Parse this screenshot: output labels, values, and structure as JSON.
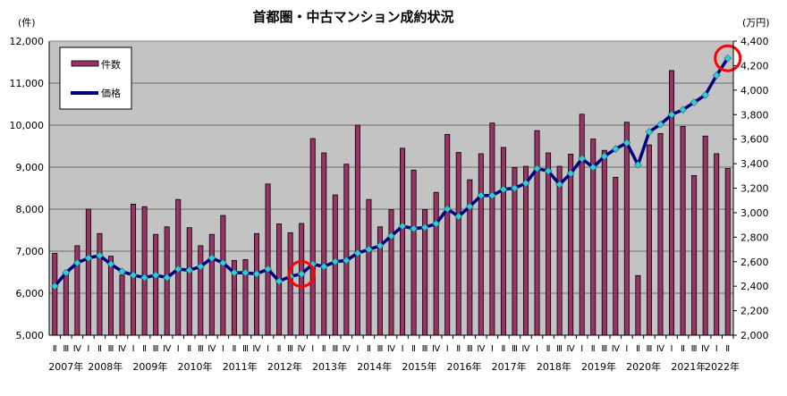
{
  "chart_data": {
    "type": "bar+line",
    "title": "首都圏・中古マンション成約状況",
    "y_left_label": "(件)",
    "y_right_label": "(万円)",
    "y_left_lim": [
      5000,
      12000
    ],
    "y_right_lim": [
      2000,
      4400
    ],
    "y_left_ticks": [
      "5,000",
      "6,000",
      "7,000",
      "8,000",
      "9,000",
      "10,000",
      "11,000",
      "12,000"
    ],
    "y_right_ticks": [
      "2,000",
      "2,200",
      "2,400",
      "2,600",
      "2,800",
      "3,000",
      "3,200",
      "3,400",
      "3,600",
      "3,800",
      "4,000",
      "4,200",
      "4,400"
    ],
    "grid": true,
    "legend_placement": "top-left",
    "years": [
      {
        "label": "2007年",
        "quarters": [
          "Ⅱ",
          "Ⅲ",
          "Ⅳ"
        ]
      },
      {
        "label": "2008年",
        "quarters": [
          "Ⅰ",
          "Ⅱ",
          "Ⅲ",
          "Ⅳ"
        ]
      },
      {
        "label": "2009年",
        "quarters": [
          "Ⅰ",
          "Ⅱ",
          "Ⅲ",
          "Ⅳ"
        ]
      },
      {
        "label": "2010年",
        "quarters": [
          "Ⅰ",
          "Ⅱ",
          "Ⅲ",
          "Ⅳ"
        ]
      },
      {
        "label": "2011年",
        "quarters": [
          "Ⅰ",
          "Ⅱ",
          "Ⅲ",
          "Ⅳ"
        ]
      },
      {
        "label": "2012年",
        "quarters": [
          "Ⅰ",
          "Ⅱ",
          "Ⅲ",
          "Ⅳ"
        ]
      },
      {
        "label": "2013年",
        "quarters": [
          "Ⅰ",
          "Ⅱ",
          "Ⅲ",
          "Ⅳ"
        ]
      },
      {
        "label": "2014年",
        "quarters": [
          "Ⅰ",
          "Ⅱ",
          "Ⅲ",
          "Ⅳ"
        ]
      },
      {
        "label": "2015年",
        "quarters": [
          "Ⅰ",
          "Ⅱ",
          "Ⅲ",
          "Ⅳ"
        ]
      },
      {
        "label": "2016年",
        "quarters": [
          "Ⅰ",
          "Ⅱ",
          "Ⅲ",
          "Ⅳ"
        ]
      },
      {
        "label": "2017年",
        "quarters": [
          "Ⅰ",
          "Ⅱ",
          "Ⅲ",
          "Ⅳ"
        ]
      },
      {
        "label": "2018年",
        "quarters": [
          "Ⅰ",
          "Ⅱ",
          "Ⅲ",
          "Ⅳ"
        ]
      },
      {
        "label": "2019年",
        "quarters": [
          "Ⅰ",
          "Ⅱ",
          "Ⅲ",
          "Ⅳ"
        ]
      },
      {
        "label": "2020年",
        "quarters": [
          "Ⅰ",
          "Ⅱ",
          "Ⅲ",
          "Ⅳ"
        ]
      },
      {
        "label": "2021年",
        "quarters": [
          "Ⅰ",
          "Ⅱ",
          "Ⅲ",
          "Ⅳ"
        ]
      },
      {
        "label": "2022年",
        "quarters": [
          "Ⅰ",
          "Ⅱ"
        ]
      }
    ],
    "series": [
      {
        "name": "件数",
        "axis": "left",
        "kind": "bar",
        "color": "#993366",
        "values": [
          6950,
          6500,
          7130,
          8000,
          7420,
          6880,
          6430,
          8120,
          8060,
          7400,
          7580,
          8230,
          7560,
          7130,
          7400,
          7850,
          6780,
          6800,
          7420,
          8600,
          7650,
          7440,
          7660,
          9680,
          9340,
          8340,
          9070,
          10000,
          8230,
          7580,
          7990,
          9450,
          8930,
          7990,
          8400,
          9780,
          9350,
          8700,
          9320,
          10050,
          9470,
          8990,
          9020,
          9870,
          9340,
          9020,
          9310,
          10260,
          9670,
          9400,
          8760,
          10070,
          6420,
          9530,
          9800,
          11300,
          9970,
          8800,
          9740,
          9320,
          8970
        ]
      },
      {
        "name": "価格",
        "axis": "right",
        "kind": "line",
        "color": "#000080",
        "marker_color": "#33CCCC",
        "values": [
          2400,
          2510,
          2590,
          2630,
          2650,
          2580,
          2520,
          2490,
          2470,
          2490,
          2470,
          2540,
          2530,
          2560,
          2630,
          2590,
          2510,
          2510,
          2500,
          2540,
          2440,
          2480,
          2500,
          2580,
          2560,
          2600,
          2610,
          2670,
          2700,
          2730,
          2810,
          2890,
          2870,
          2880,
          2910,
          3030,
          2970,
          3050,
          3140,
          3140,
          3190,
          3200,
          3240,
          3360,
          3340,
          3230,
          3320,
          3440,
          3370,
          3460,
          3520,
          3570,
          3390,
          3660,
          3720,
          3800,
          3840,
          3900,
          3960,
          4120,
          4260
        ]
      }
    ],
    "highlight_indices": [
      22,
      60
    ],
    "highlight_color": "#FF0000"
  }
}
